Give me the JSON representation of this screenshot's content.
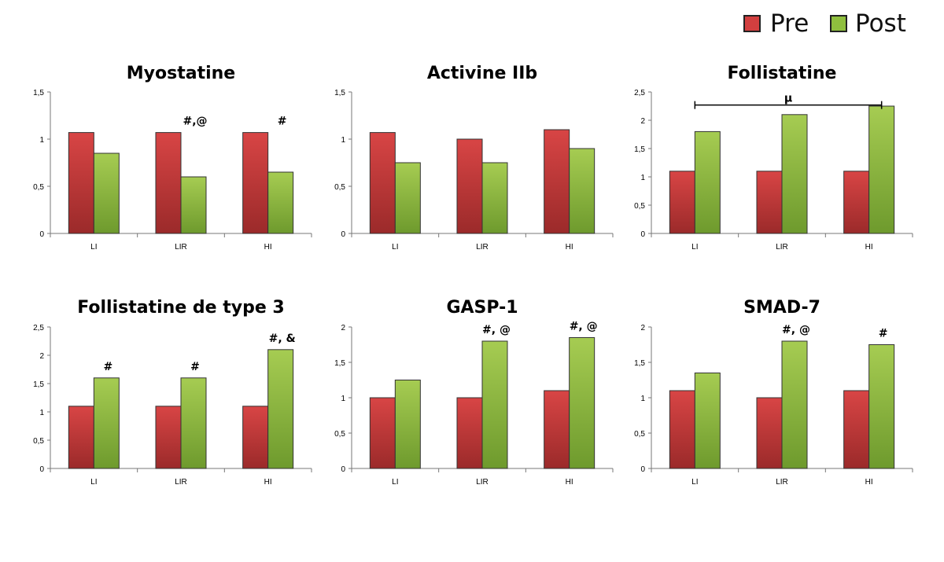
{
  "legend": {
    "items": [
      {
        "label": "Pre",
        "color": "#d23f3f"
      },
      {
        "label": "Post",
        "color": "#8fbf3e"
      }
    ]
  },
  "colors": {
    "pre_top": "#d84545",
    "pre_bottom": "#9b2a2a",
    "post_top": "#a6cc52",
    "post_bottom": "#6e9a2d"
  },
  "chart_data": [
    {
      "type": "bar",
      "title": "Myostatine",
      "categories": [
        "LI",
        "LIR",
        "HI"
      ],
      "series": [
        {
          "name": "Pre",
          "values": [
            1.07,
            1.07,
            1.07
          ]
        },
        {
          "name": "Post",
          "values": [
            0.85,
            0.6,
            0.65
          ]
        }
      ],
      "ylim": [
        0,
        1.5
      ],
      "yticks": [
        "0",
        "0,5",
        "1",
        "1,5"
      ],
      "annotations": [
        "",
        "#,@",
        "#"
      ]
    },
    {
      "type": "bar",
      "title": "Activine IIb",
      "categories": [
        "LI",
        "LIR",
        "HI"
      ],
      "series": [
        {
          "name": "Pre",
          "values": [
            1.07,
            1.0,
            1.1
          ]
        },
        {
          "name": "Post",
          "values": [
            0.75,
            0.75,
            0.9
          ]
        }
      ],
      "ylim": [
        0,
        1.5
      ],
      "yticks": [
        "0",
        "0,5",
        "1",
        "1,5"
      ],
      "annotations": [
        "",
        "",
        ""
      ]
    },
    {
      "type": "bar",
      "title": "Follistatine",
      "categories": [
        "LI",
        "LIR",
        "HI"
      ],
      "series": [
        {
          "name": "Pre",
          "values": [
            1.1,
            1.1,
            1.1
          ]
        },
        {
          "name": "Post",
          "values": [
            1.8,
            2.1,
            2.25
          ]
        }
      ],
      "ylim": [
        0,
        2.5
      ],
      "yticks": [
        "0",
        "0,5",
        "1",
        "1,5",
        "2",
        "2,5"
      ],
      "annotations": [
        "",
        "",
        ""
      ],
      "bracket": {
        "label": "μ",
        "from": 0,
        "to": 2,
        "y": 2.38
      }
    },
    {
      "type": "bar",
      "title": "Follistatine de type 3",
      "categories": [
        "LI",
        "LIR",
        "HI"
      ],
      "series": [
        {
          "name": "Pre",
          "values": [
            1.1,
            1.1,
            1.1
          ]
        },
        {
          "name": "Post",
          "values": [
            1.6,
            1.6,
            2.1
          ]
        }
      ],
      "ylim": [
        0,
        2.5
      ],
      "yticks": [
        "0",
        "0,5",
        "1",
        "1,5",
        "2",
        "2,5"
      ],
      "annotations": [
        "#",
        "#",
        "#, &"
      ]
    },
    {
      "type": "bar",
      "title": "GASP-1",
      "categories": [
        "LI",
        "LIR",
        "HI"
      ],
      "series": [
        {
          "name": "Pre",
          "values": [
            1.0,
            1.0,
            1.1
          ]
        },
        {
          "name": "Post",
          "values": [
            1.25,
            1.8,
            1.85
          ]
        }
      ],
      "ylim": [
        0,
        2
      ],
      "yticks": [
        "0",
        "0,5",
        "1",
        "1,5",
        "2"
      ],
      "annotations": [
        "",
        "#, @",
        "#, @"
      ]
    },
    {
      "type": "bar",
      "title": "SMAD-7",
      "categories": [
        "LI",
        "LIR",
        "HI"
      ],
      "series": [
        {
          "name": "Pre",
          "values": [
            1.1,
            1.0,
            1.1
          ]
        },
        {
          "name": "Post",
          "values": [
            1.35,
            1.8,
            1.75
          ]
        }
      ],
      "ylim": [
        0,
        2
      ],
      "yticks": [
        "0",
        "0,5",
        "1",
        "1,5",
        "2"
      ],
      "annotations": [
        "",
        "#, @",
        "#"
      ]
    }
  ]
}
